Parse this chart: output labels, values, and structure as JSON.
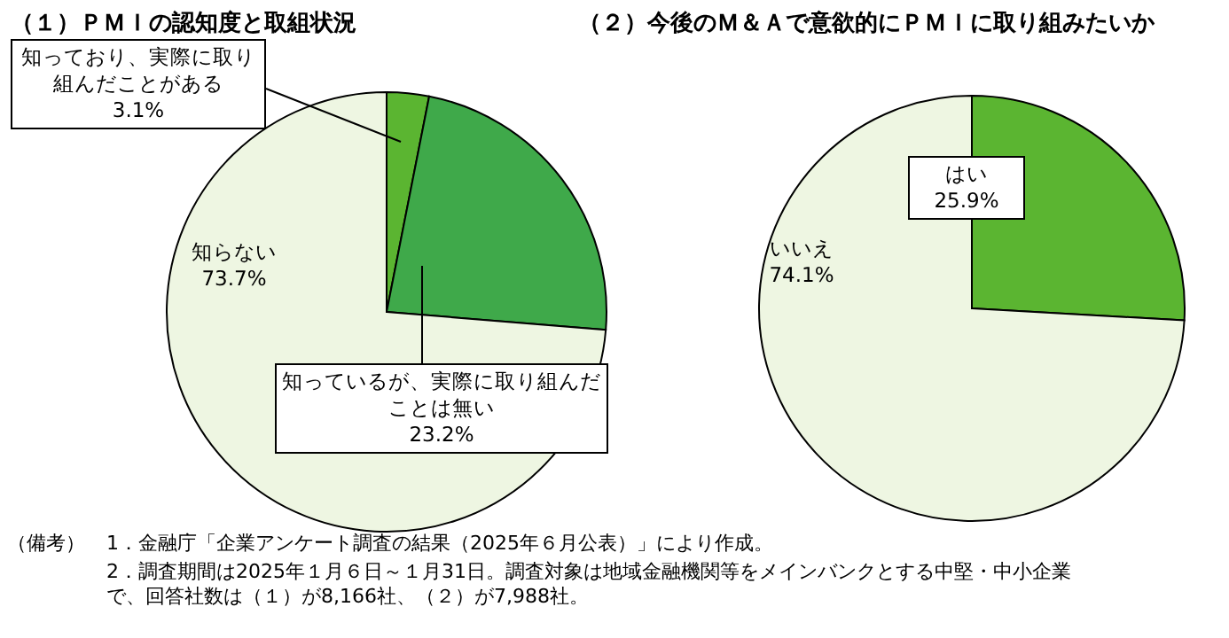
{
  "chart_data": [
    {
      "type": "pie",
      "title": "（１）ＰＭＩの認知度と取組状況",
      "categories": [
        "知っており、実際に取り組んだことがある",
        "知っているが、実際に取り組んだことは無い",
        "知らない"
      ],
      "values": [
        3.1,
        23.2,
        73.7
      ],
      "value_labels": [
        "3.1%",
        "23.2%",
        "73.7%"
      ],
      "colors": [
        "#5bb531",
        "#3fa94a",
        "#eef6e2"
      ],
      "annotations": [
        "（備考）",
        "1．金融庁「企業アンケート調査の結果（2025年６月公表）」により作成。",
        "2．調査期間は2025年１月６日～１月31日。調査対象は地域金融機関等をメインバンクとする中堅・中小企業で、回答社数は（１）が8,166社、（２）が7,988社。"
      ],
      "legend": false
    },
    {
      "type": "pie",
      "title": "（２）今後のＭ＆Ａで意欲的にＰＭＩに取り組みたいか",
      "categories": [
        "はい",
        "いいえ"
      ],
      "values": [
        25.9,
        74.1
      ],
      "value_labels": [
        "25.9%",
        "74.1%"
      ],
      "colors": [
        "#5bb531",
        "#eef6e2"
      ],
      "legend": false
    }
  ]
}
